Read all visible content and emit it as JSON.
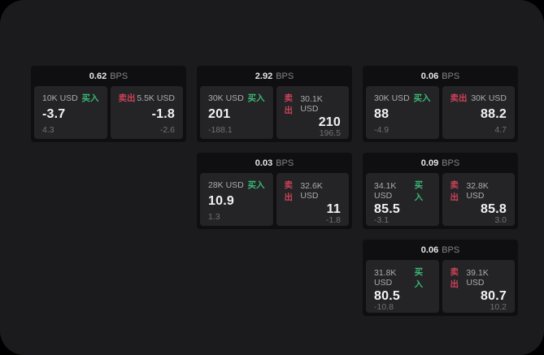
{
  "labels": {
    "buy": "买入",
    "sell": "卖出",
    "bps": "BPS"
  },
  "colors": {
    "buy_accent": "#3bb873",
    "sell_accent": "#cb4257",
    "surface": "#1b1b1d",
    "card": "#0f0f11",
    "panel": "#242427"
  },
  "cards": [
    {
      "bps": "0.62",
      "buy": {
        "amount": "10K USD",
        "value": "-3.7",
        "delta": "4.3"
      },
      "sell": {
        "amount": "5.5K USD",
        "value": "-1.8",
        "delta": "-2.6"
      }
    },
    {
      "bps": "2.92",
      "buy": {
        "amount": "30K USD",
        "value": "201",
        "delta": "-188.1"
      },
      "sell": {
        "amount": "30.1K USD",
        "value": "210",
        "delta": "196.5"
      }
    },
    {
      "bps": "0.06",
      "buy": {
        "amount": "30K USD",
        "value": "88",
        "delta": "-4.9"
      },
      "sell": {
        "amount": "30K USD",
        "value": "88.2",
        "delta": "4.7"
      }
    },
    {
      "bps": "0.03",
      "buy": {
        "amount": "28K USD",
        "value": "10.9",
        "delta": "1.3"
      },
      "sell": {
        "amount": "32.6K USD",
        "value": "11",
        "delta": "-1.8"
      }
    },
    {
      "bps": "0.09",
      "buy": {
        "amount": "34.1K USD",
        "value": "85.5",
        "delta": "-3.1"
      },
      "sell": {
        "amount": "32.8K USD",
        "value": "85.8",
        "delta": "3.0"
      }
    },
    {
      "bps": "0.06",
      "buy": {
        "amount": "31.8K USD",
        "value": "80.5",
        "delta": "-10.8"
      },
      "sell": {
        "amount": "39.1K USD",
        "value": "80.7",
        "delta": "10.2"
      }
    }
  ]
}
